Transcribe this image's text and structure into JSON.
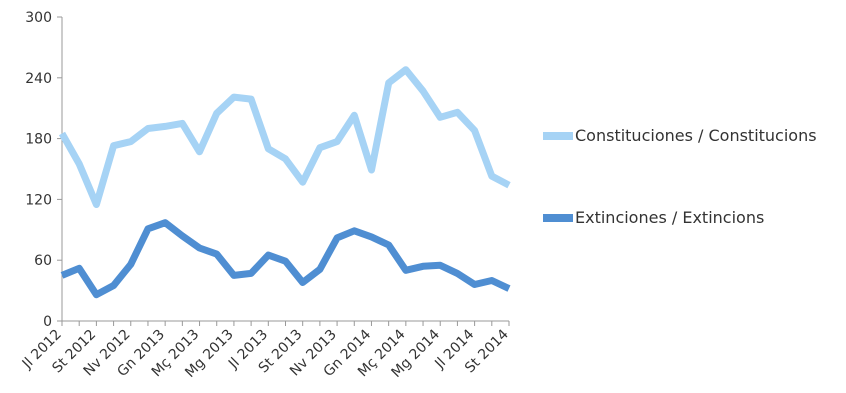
{
  "chart_data": {
    "type": "line",
    "title": "",
    "xlabel": "",
    "ylabel": "",
    "ylim": [
      0,
      300
    ],
    "yticks": [
      0,
      60,
      120,
      180,
      240,
      300
    ],
    "grid": false,
    "legend_position": "right",
    "x": [
      "Jl 2012",
      "Ag 2012",
      "St 2012",
      "Oc 2012",
      "Nv 2012",
      "Dc 2012",
      "Gn 2013",
      "Fb 2013",
      "Mç 2013",
      "Ab 2013",
      "Mg 2013",
      "Jn 2013",
      "Jl 2013",
      "Ag 2013",
      "St 2013",
      "Oc 2013",
      "Nv 2013",
      "Dc 2013",
      "Gn 2014",
      "Fb 2014",
      "Mç 2014",
      "Ab 2014",
      "Mg 2014",
      "Jn 2014",
      "Jl 2014",
      "Ag 2014",
      "St 2014"
    ],
    "xtick_labels": [
      "Jl 2012",
      "St 2012",
      "Nv 2012",
      "Gn 2013",
      "Mç 2013",
      "Mg 2013",
      "Jl 2013",
      "St 2013",
      "Nv 2013",
      "Gn 2014",
      "Mç 2014",
      "Mg 2014",
      "Jl 2014",
      "St 2014"
    ],
    "series": [
      {
        "name": "Constituciones / Constitucions",
        "color": "#a6d3f5",
        "values": [
          185,
          155,
          115,
          173,
          177,
          190,
          192,
          195,
          167,
          205,
          221,
          219,
          170,
          160,
          137,
          171,
          177,
          203,
          149,
          235,
          248,
          227,
          201,
          206,
          188,
          143,
          134
        ]
      },
      {
        "name": "Extinciones / Extincions",
        "color": "#4f8ed2",
        "values": [
          45,
          52,
          26,
          35,
          56,
          91,
          97,
          84,
          72,
          66,
          45,
          47,
          65,
          59,
          38,
          51,
          82,
          89,
          83,
          75,
          50,
          54,
          55,
          47,
          36,
          40,
          32
        ]
      }
    ]
  }
}
